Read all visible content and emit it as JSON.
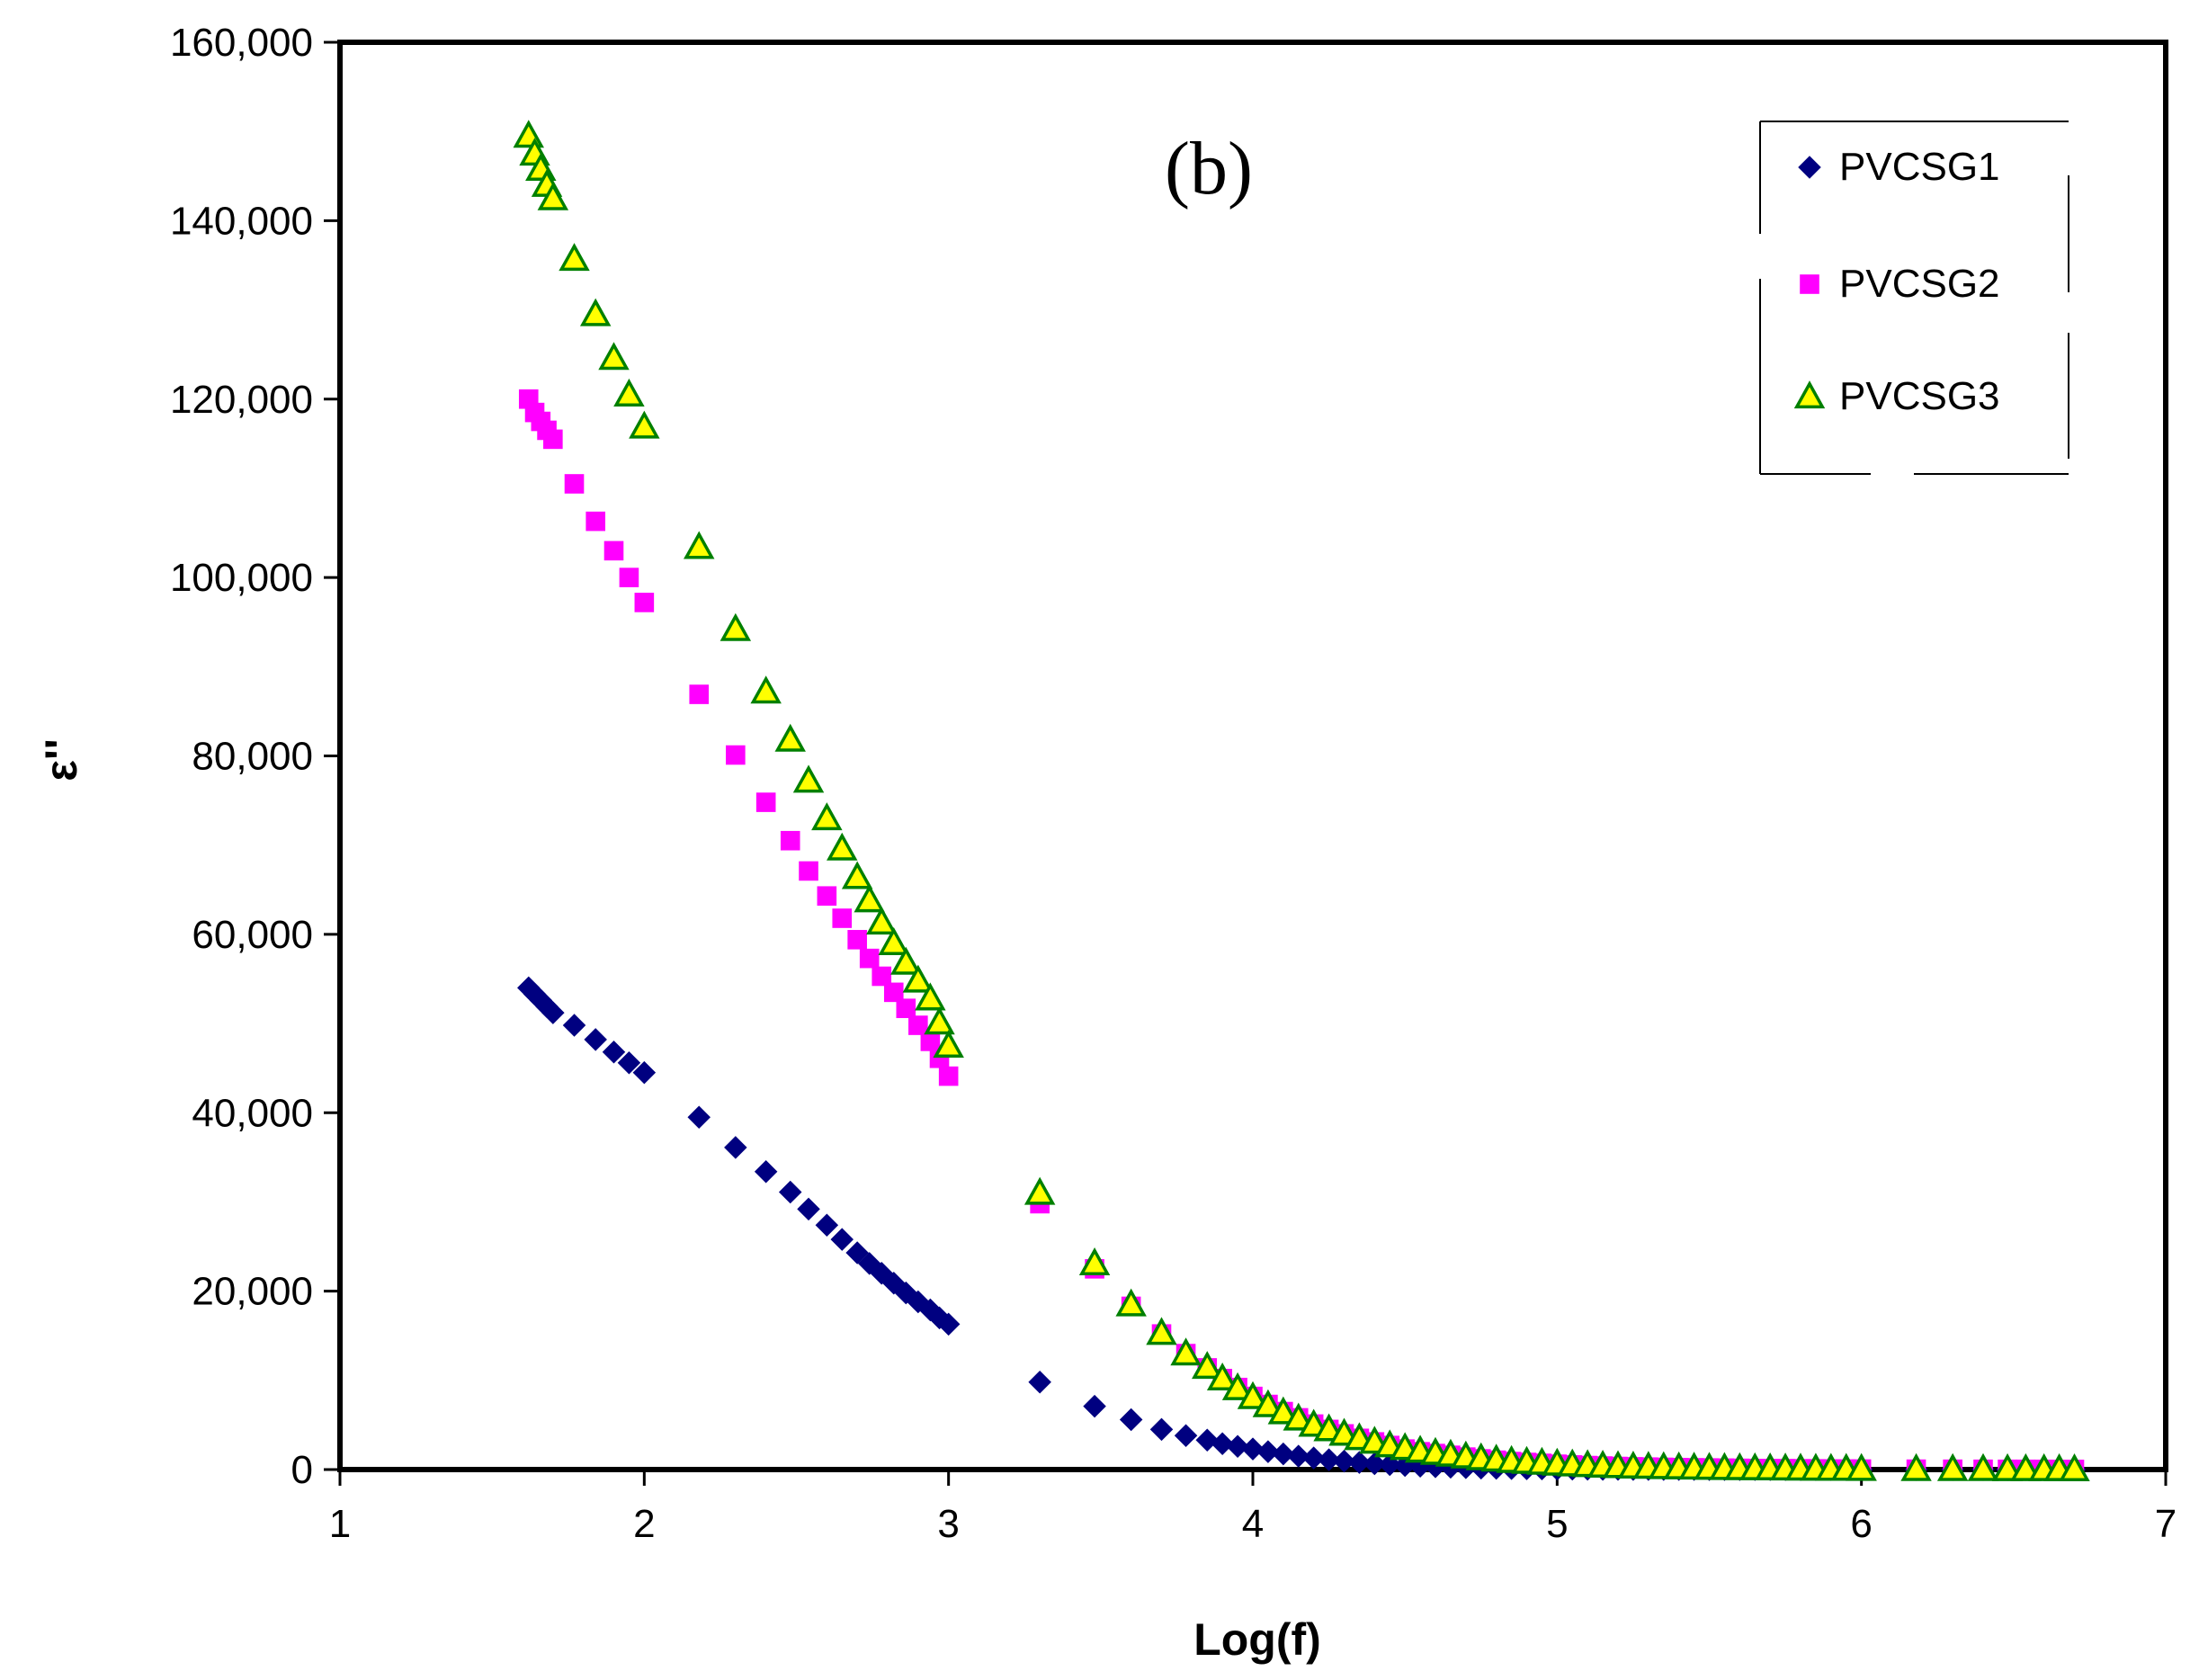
{
  "chart_data": {
    "type": "scatter",
    "title": "",
    "annotation": "(b)",
    "xlabel": "Log(f)",
    "ylabel": "ε''",
    "xlim": [
      1,
      7
    ],
    "ylim": [
      0,
      160000
    ],
    "xticks": [
      1,
      2,
      3,
      4,
      5,
      6,
      7
    ],
    "xtick_labels": [
      "1",
      "2",
      "3",
      "4",
      "5",
      "6",
      "7"
    ],
    "yticks": [
      0,
      20000,
      40000,
      60000,
      80000,
      100000,
      120000,
      140000,
      160000
    ],
    "ytick_labels": [
      "0",
      "20,000",
      "40,000",
      "60,000",
      "80,000",
      "100,000",
      "120,000",
      "140,000",
      "160,000"
    ],
    "grid": false,
    "legend_position": "top-right",
    "series": [
      {
        "name": "PVCSG1",
        "marker": "diamond",
        "color": "#000080",
        "x": [
          1.62,
          1.64,
          1.66,
          1.68,
          1.7,
          1.77,
          1.84,
          1.9,
          1.95,
          2.0,
          2.18,
          2.3,
          2.4,
          2.48,
          2.54,
          2.6,
          2.65,
          2.7,
          2.74,
          2.78,
          2.82,
          2.86,
          2.9,
          2.94,
          2.97,
          3.0,
          3.3,
          3.48,
          3.6,
          3.7,
          3.78,
          3.85,
          3.9,
          3.95,
          4.0,
          4.05,
          4.1,
          4.15,
          4.2,
          4.25,
          4.3,
          4.35,
          4.4,
          4.45,
          4.5,
          4.55,
          4.6,
          4.65,
          4.7,
          4.75,
          4.8,
          4.85,
          4.9,
          4.95,
          5.0,
          5.05,
          5.1,
          5.15,
          5.2,
          5.25,
          5.3,
          5.35,
          5.4,
          5.45,
          5.5,
          5.55,
          5.6,
          5.65,
          5.7,
          5.75,
          5.8,
          5.85,
          5.9,
          5.95,
          6.0,
          6.18,
          6.3,
          6.4,
          6.48,
          6.54,
          6.6,
          6.65,
          6.7
        ],
        "values": [
          54000,
          53300,
          52600,
          51900,
          51200,
          49800,
          48200,
          46800,
          45600,
          44500,
          39500,
          36100,
          33400,
          31100,
          29200,
          27400,
          25800,
          24300,
          23100,
          22000,
          20900,
          19800,
          18800,
          17900,
          17000,
          16300,
          9800,
          7100,
          5600,
          4500,
          3800,
          3300,
          2900,
          2600,
          2300,
          2000,
          1750,
          1500,
          1300,
          1100,
          950,
          800,
          650,
          550,
          450,
          380,
          310,
          260,
          210,
          170,
          140,
          110,
          90,
          70,
          55,
          45,
          35,
          28,
          22,
          18,
          14,
          11,
          9,
          7,
          6,
          5,
          4,
          3,
          3,
          2,
          2,
          2,
          1,
          1,
          1,
          1,
          1,
          1,
          1,
          1,
          1,
          1,
          1
        ]
      },
      {
        "name": "PVCSG2",
        "marker": "square",
        "color": "#ff00ff",
        "x": [
          1.62,
          1.64,
          1.66,
          1.68,
          1.7,
          1.77,
          1.84,
          1.9,
          1.95,
          2.0,
          2.18,
          2.3,
          2.4,
          2.48,
          2.54,
          2.6,
          2.65,
          2.7,
          2.74,
          2.78,
          2.82,
          2.86,
          2.9,
          2.94,
          2.97,
          3.0,
          3.3,
          3.48,
          3.6,
          3.7,
          3.78,
          3.85,
          3.9,
          3.95,
          4.0,
          4.05,
          4.1,
          4.15,
          4.2,
          4.25,
          4.3,
          4.35,
          4.4,
          4.45,
          4.5,
          4.55,
          4.6,
          4.65,
          4.7,
          4.75,
          4.8,
          4.85,
          4.9,
          4.95,
          5.0,
          5.05,
          5.1,
          5.15,
          5.2,
          5.25,
          5.3,
          5.35,
          5.4,
          5.45,
          5.5,
          5.55,
          5.6,
          5.65,
          5.7,
          5.75,
          5.8,
          5.85,
          5.9,
          5.95,
          6.0,
          6.18,
          6.3,
          6.4,
          6.48,
          6.54,
          6.6,
          6.65,
          6.7
        ],
        "values": [
          120000,
          118500,
          117500,
          116500,
          115500,
          110500,
          106300,
          103000,
          100000,
          97200,
          86900,
          80100,
          74800,
          70500,
          67100,
          64300,
          61800,
          59400,
          57300,
          55300,
          53500,
          51700,
          49800,
          48000,
          46100,
          44100,
          29800,
          22500,
          18300,
          15200,
          13000,
          11400,
          10200,
          9200,
          8200,
          7300,
          6500,
          5800,
          5100,
          4500,
          4000,
          3500,
          3100,
          2700,
          2300,
          2000,
          1800,
          1600,
          1400,
          1200,
          1050,
          900,
          800,
          700,
          600,
          520,
          450,
          400,
          350,
          310,
          280,
          250,
          220,
          200,
          180,
          160,
          140,
          120,
          110,
          100,
          90,
          80,
          70,
          60,
          55,
          45,
          40,
          35,
          30,
          28,
          25,
          22,
          20
        ]
      },
      {
        "name": "PVCSG3",
        "marker": "triangle",
        "color": "#ffff00",
        "stroke": "#008000",
        "x": [
          1.62,
          1.64,
          1.66,
          1.68,
          1.7,
          1.77,
          1.84,
          1.9,
          1.95,
          2.0,
          2.18,
          2.3,
          2.4,
          2.48,
          2.54,
          2.6,
          2.65,
          2.7,
          2.74,
          2.78,
          2.82,
          2.86,
          2.9,
          2.94,
          2.97,
          3.0,
          3.3,
          3.48,
          3.6,
          3.7,
          3.78,
          3.85,
          3.9,
          3.95,
          4.0,
          4.05,
          4.1,
          4.15,
          4.2,
          4.25,
          4.3,
          4.35,
          4.4,
          4.45,
          4.5,
          4.55,
          4.6,
          4.65,
          4.7,
          4.75,
          4.8,
          4.85,
          4.9,
          4.95,
          5.0,
          5.05,
          5.1,
          5.15,
          5.2,
          5.25,
          5.3,
          5.35,
          5.4,
          5.45,
          5.5,
          5.55,
          5.6,
          5.65,
          5.7,
          5.75,
          5.8,
          5.85,
          5.9,
          5.95,
          6.0,
          6.18,
          6.3,
          6.4,
          6.48,
          6.54,
          6.6,
          6.65,
          6.7
        ],
        "values": [
          149500,
          147500,
          145800,
          144000,
          142500,
          135700,
          129500,
          124600,
          120500,
          116900,
          103400,
          94200,
          87200,
          81800,
          77200,
          73000,
          69600,
          66400,
          63800,
          61300,
          59000,
          56800,
          54800,
          52800,
          50100,
          47500,
          31000,
          23100,
          18500,
          15300,
          13000,
          11500,
          10200,
          9100,
          8100,
          7200,
          6400,
          5700,
          5000,
          4500,
          4000,
          3500,
          3100,
          2700,
          2400,
          2100,
          1850,
          1650,
          1450,
          1250,
          1100,
          950,
          850,
          750,
          650,
          560,
          480,
          420,
          370,
          320,
          290,
          260,
          230,
          200,
          180,
          160,
          140,
          125,
          110,
          100,
          90,
          80,
          70,
          60,
          55,
          45,
          40,
          35,
          30,
          28,
          25,
          22,
          20
        ]
      }
    ]
  }
}
